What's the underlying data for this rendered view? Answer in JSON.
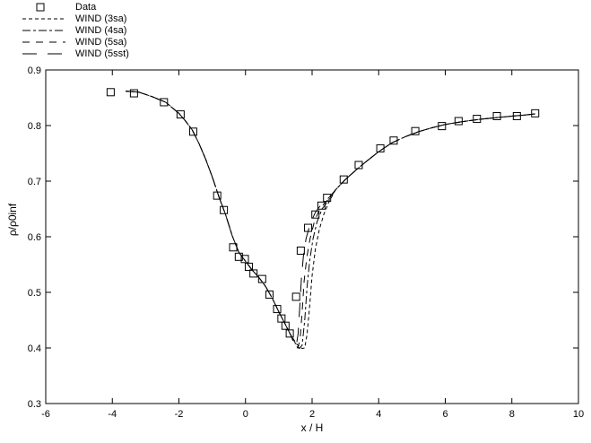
{
  "colors": {
    "background": "#ffffff",
    "ink": "#000000"
  },
  "chart_data": {
    "type": "line",
    "title": "",
    "xlabel": "x / H",
    "ylabel": "ρ/ρ0inf",
    "xlim": [
      -6,
      10
    ],
    "ylim": [
      0.3,
      0.9
    ],
    "x_ticks": [
      -6,
      -4,
      -2,
      0,
      2,
      4,
      6,
      8,
      10
    ],
    "x_tick_labels": [
      "-6",
      "-4",
      "-2",
      "0",
      "2",
      "4",
      "6",
      "8",
      "10"
    ],
    "y_ticks": [
      0.3,
      0.4,
      0.5,
      0.6,
      0.7,
      0.8,
      0.9
    ],
    "y_tick_labels": [
      "0.3",
      "0.4",
      "0.5",
      "0.6",
      "0.7",
      "0.8",
      "0.9"
    ],
    "grid": false,
    "legend_position": "top-left-outside",
    "series": [
      {
        "name": "Data",
        "type": "scatter",
        "marker": "open-square",
        "points": [
          [
            -4.05,
            0.86
          ],
          [
            -3.35,
            0.858
          ],
          [
            -2.45,
            0.842
          ],
          [
            -1.95,
            0.82
          ],
          [
            -1.57,
            0.789
          ],
          [
            -0.85,
            0.674
          ],
          [
            -0.65,
            0.648
          ],
          [
            -0.37,
            0.581
          ],
          [
            -0.2,
            0.564
          ],
          [
            -0.02,
            0.56
          ],
          [
            0.1,
            0.546
          ],
          [
            0.24,
            0.534
          ],
          [
            0.5,
            0.524
          ],
          [
            0.72,
            0.496
          ],
          [
            0.95,
            0.47
          ],
          [
            1.08,
            0.453
          ],
          [
            1.2,
            0.44
          ],
          [
            1.33,
            0.426
          ],
          [
            1.52,
            0.492
          ],
          [
            1.66,
            0.575
          ],
          [
            1.88,
            0.616
          ],
          [
            2.1,
            0.64
          ],
          [
            2.28,
            0.656
          ],
          [
            2.45,
            0.67
          ],
          [
            2.95,
            0.703
          ],
          [
            3.4,
            0.729
          ],
          [
            4.05,
            0.759
          ],
          [
            4.45,
            0.773
          ],
          [
            5.1,
            0.79
          ],
          [
            5.9,
            0.799
          ],
          [
            6.4,
            0.808
          ],
          [
            6.95,
            0.812
          ],
          [
            7.55,
            0.817
          ],
          [
            8.15,
            0.817
          ],
          [
            8.7,
            0.822
          ]
        ]
      },
      {
        "name": "WIND (3sa)",
        "type": "line",
        "dash": "4 3",
        "points": [
          [
            -3.6,
            0.862
          ],
          [
            -3.2,
            0.86
          ],
          [
            -2.8,
            0.852
          ],
          [
            -2.4,
            0.842
          ],
          [
            -2.0,
            0.822
          ],
          [
            -1.8,
            0.808
          ],
          [
            -1.6,
            0.792
          ],
          [
            -1.4,
            0.768
          ],
          [
            -1.2,
            0.74
          ],
          [
            -1.0,
            0.708
          ],
          [
            -0.8,
            0.672
          ],
          [
            -0.6,
            0.64
          ],
          [
            -0.4,
            0.602
          ],
          [
            -0.2,
            0.572
          ],
          [
            0.0,
            0.556
          ],
          [
            0.2,
            0.54
          ],
          [
            0.4,
            0.527
          ],
          [
            0.6,
            0.511
          ],
          [
            0.8,
            0.49
          ],
          [
            1.0,
            0.465
          ],
          [
            1.2,
            0.442
          ],
          [
            1.35,
            0.424
          ],
          [
            1.55,
            0.406
          ],
          [
            1.7,
            0.399
          ],
          [
            1.78,
            0.4
          ],
          [
            1.85,
            0.425
          ],
          [
            1.92,
            0.47
          ],
          [
            2.0,
            0.53
          ],
          [
            2.1,
            0.578
          ],
          [
            2.22,
            0.614
          ],
          [
            2.35,
            0.64
          ],
          [
            2.5,
            0.662
          ],
          [
            2.7,
            0.684
          ],
          [
            3.0,
            0.703
          ],
          [
            3.3,
            0.719
          ],
          [
            3.6,
            0.734
          ],
          [
            4.0,
            0.753
          ],
          [
            4.4,
            0.769
          ],
          [
            4.8,
            0.78
          ],
          [
            5.2,
            0.789
          ],
          [
            5.6,
            0.796
          ],
          [
            6.0,
            0.802
          ],
          [
            6.5,
            0.807
          ],
          [
            7.0,
            0.811
          ],
          [
            7.5,
            0.814
          ],
          [
            8.0,
            0.817
          ],
          [
            8.4,
            0.819
          ],
          [
            8.7,
            0.821
          ]
        ]
      },
      {
        "name": "WIND (4sa)",
        "type": "line",
        "dash": "9 3 3 3",
        "points": [
          [
            -3.6,
            0.862
          ],
          [
            -3.2,
            0.86
          ],
          [
            -2.8,
            0.852
          ],
          [
            -2.4,
            0.842
          ],
          [
            -2.0,
            0.822
          ],
          [
            -1.8,
            0.808
          ],
          [
            -1.6,
            0.792
          ],
          [
            -1.4,
            0.768
          ],
          [
            -1.2,
            0.74
          ],
          [
            -1.0,
            0.708
          ],
          [
            -0.8,
            0.672
          ],
          [
            -0.6,
            0.64
          ],
          [
            -0.4,
            0.602
          ],
          [
            -0.2,
            0.572
          ],
          [
            0.0,
            0.556
          ],
          [
            0.2,
            0.54
          ],
          [
            0.4,
            0.527
          ],
          [
            0.6,
            0.511
          ],
          [
            0.8,
            0.49
          ],
          [
            1.0,
            0.465
          ],
          [
            1.2,
            0.442
          ],
          [
            1.35,
            0.424
          ],
          [
            1.5,
            0.408
          ],
          [
            1.62,
            0.399
          ],
          [
            1.7,
            0.405
          ],
          [
            1.78,
            0.45
          ],
          [
            1.85,
            0.51
          ],
          [
            1.93,
            0.558
          ],
          [
            2.03,
            0.597
          ],
          [
            2.15,
            0.627
          ],
          [
            2.3,
            0.65
          ],
          [
            2.5,
            0.666
          ],
          [
            2.7,
            0.684
          ],
          [
            3.0,
            0.703
          ],
          [
            3.3,
            0.719
          ],
          [
            3.6,
            0.734
          ],
          [
            4.0,
            0.753
          ],
          [
            4.4,
            0.769
          ],
          [
            4.8,
            0.78
          ],
          [
            5.2,
            0.789
          ],
          [
            5.6,
            0.796
          ],
          [
            6.0,
            0.802
          ],
          [
            6.5,
            0.807
          ],
          [
            7.0,
            0.811
          ],
          [
            7.5,
            0.814
          ],
          [
            8.0,
            0.817
          ],
          [
            8.4,
            0.819
          ],
          [
            8.7,
            0.821
          ]
        ]
      },
      {
        "name": "WIND (5sa)",
        "type": "line",
        "dash": "8 7",
        "points": [
          [
            -3.6,
            0.862
          ],
          [
            -3.2,
            0.86
          ],
          [
            -2.8,
            0.852
          ],
          [
            -2.4,
            0.842
          ],
          [
            -2.0,
            0.822
          ],
          [
            -1.8,
            0.808
          ],
          [
            -1.6,
            0.792
          ],
          [
            -1.4,
            0.768
          ],
          [
            -1.2,
            0.74
          ],
          [
            -1.0,
            0.708
          ],
          [
            -0.8,
            0.672
          ],
          [
            -0.6,
            0.64
          ],
          [
            -0.4,
            0.602
          ],
          [
            -0.2,
            0.572
          ],
          [
            0.0,
            0.556
          ],
          [
            0.2,
            0.54
          ],
          [
            0.4,
            0.527
          ],
          [
            0.6,
            0.511
          ],
          [
            0.8,
            0.49
          ],
          [
            1.0,
            0.465
          ],
          [
            1.2,
            0.442
          ],
          [
            1.35,
            0.424
          ],
          [
            1.47,
            0.409
          ],
          [
            1.57,
            0.4
          ],
          [
            1.64,
            0.415
          ],
          [
            1.7,
            0.465
          ],
          [
            1.76,
            0.52
          ],
          [
            1.84,
            0.563
          ],
          [
            1.94,
            0.597
          ],
          [
            2.06,
            0.625
          ],
          [
            2.2,
            0.646
          ],
          [
            2.35,
            0.659
          ],
          [
            2.5,
            0.668
          ],
          [
            2.7,
            0.684
          ],
          [
            3.0,
            0.703
          ],
          [
            3.3,
            0.719
          ],
          [
            3.6,
            0.734
          ],
          [
            4.0,
            0.753
          ],
          [
            4.4,
            0.769
          ],
          [
            4.8,
            0.78
          ],
          [
            5.2,
            0.789
          ],
          [
            5.6,
            0.796
          ],
          [
            6.0,
            0.802
          ],
          [
            6.5,
            0.807
          ],
          [
            7.0,
            0.811
          ],
          [
            7.5,
            0.814
          ],
          [
            8.0,
            0.817
          ],
          [
            8.4,
            0.819
          ],
          [
            8.7,
            0.821
          ]
        ]
      },
      {
        "name": "WIND (5sst)",
        "type": "line",
        "dash": "16 12",
        "points": [
          [
            -3.6,
            0.862
          ],
          [
            -3.2,
            0.86
          ],
          [
            -2.8,
            0.852
          ],
          [
            -2.4,
            0.842
          ],
          [
            -2.0,
            0.822
          ],
          [
            -1.8,
            0.808
          ],
          [
            -1.6,
            0.792
          ],
          [
            -1.4,
            0.768
          ],
          [
            -1.2,
            0.74
          ],
          [
            -1.0,
            0.708
          ],
          [
            -0.8,
            0.672
          ],
          [
            -0.6,
            0.64
          ],
          [
            -0.4,
            0.602
          ],
          [
            -0.2,
            0.572
          ],
          [
            0.0,
            0.556
          ],
          [
            0.2,
            0.54
          ],
          [
            0.4,
            0.527
          ],
          [
            0.6,
            0.511
          ],
          [
            0.8,
            0.49
          ],
          [
            1.0,
            0.465
          ],
          [
            1.2,
            0.442
          ],
          [
            1.35,
            0.424
          ],
          [
            1.44,
            0.411
          ],
          [
            1.52,
            0.403
          ],
          [
            1.58,
            0.425
          ],
          [
            1.63,
            0.475
          ],
          [
            1.68,
            0.525
          ],
          [
            1.74,
            0.565
          ],
          [
            1.82,
            0.597
          ],
          [
            1.95,
            0.624
          ],
          [
            2.1,
            0.644
          ],
          [
            2.3,
            0.66
          ],
          [
            2.5,
            0.67
          ],
          [
            2.7,
            0.684
          ],
          [
            3.0,
            0.703
          ],
          [
            3.3,
            0.719
          ],
          [
            3.6,
            0.734
          ],
          [
            4.0,
            0.753
          ],
          [
            4.4,
            0.769
          ],
          [
            4.8,
            0.78
          ],
          [
            5.2,
            0.789
          ],
          [
            5.6,
            0.796
          ],
          [
            6.0,
            0.802
          ],
          [
            6.5,
            0.807
          ],
          [
            7.0,
            0.811
          ],
          [
            7.5,
            0.814
          ],
          [
            8.0,
            0.817
          ],
          [
            8.4,
            0.819
          ],
          [
            8.7,
            0.821
          ]
        ]
      }
    ]
  }
}
